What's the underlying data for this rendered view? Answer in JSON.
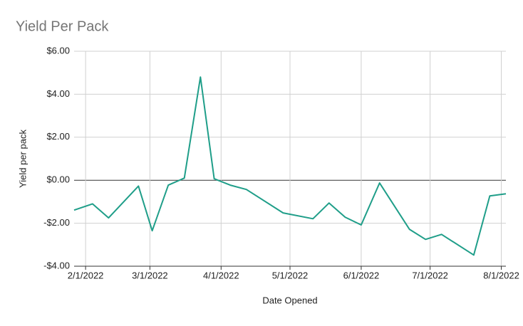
{
  "chart_data": {
    "type": "line",
    "title": "Yield Per Pack",
    "xlabel": "Date Opened",
    "ylabel": "Yield per pack",
    "x": [
      "2022-01-27",
      "2022-02-04",
      "2022-02-11",
      "2022-02-24",
      "2022-03-02",
      "2022-03-09",
      "2022-03-16",
      "2022-03-23",
      "2022-03-29",
      "2022-04-05",
      "2022-04-12",
      "2022-04-28",
      "2022-05-11",
      "2022-05-18",
      "2022-05-25",
      "2022-06-01",
      "2022-06-09",
      "2022-06-22",
      "2022-06-29",
      "2022-07-06",
      "2022-07-20",
      "2022-07-27",
      "2022-08-03"
    ],
    "series": [
      {
        "name": "Yield per pack",
        "color": "#1f9e89",
        "values": [
          -1.39,
          -1.1,
          -1.75,
          -0.27,
          -2.35,
          -0.23,
          0.1,
          4.8,
          0.07,
          -0.23,
          -0.43,
          -1.52,
          -1.79,
          -1.06,
          -1.72,
          -2.08,
          -0.13,
          -2.28,
          -2.75,
          -2.52,
          -3.48,
          -0.73,
          -0.63
        ]
      }
    ],
    "xlim": [
      "2022-01-27",
      "2022-08-03"
    ],
    "xticks": [
      {
        "value": "2022-02-01",
        "label": "2/1/2022"
      },
      {
        "value": "2022-03-01",
        "label": "3/1/2022"
      },
      {
        "value": "2022-04-01",
        "label": "4/1/2022"
      },
      {
        "value": "2022-05-01",
        "label": "5/1/2022"
      },
      {
        "value": "2022-06-01",
        "label": "6/1/2022"
      },
      {
        "value": "2022-07-01",
        "label": "7/1/2022"
      },
      {
        "value": "2022-08-01",
        "label": "8/1/2022"
      }
    ],
    "ylim": [
      -4,
      6
    ],
    "yticks": [
      {
        "value": -4,
        "label": "-$4.00"
      },
      {
        "value": -2,
        "label": "-$2.00"
      },
      {
        "value": 0,
        "label": "$0.00"
      },
      {
        "value": 2,
        "label": "$2.00"
      },
      {
        "value": 4,
        "label": "$4.00"
      },
      {
        "value": 6,
        "label": "$6.00"
      }
    ],
    "grid": true
  }
}
